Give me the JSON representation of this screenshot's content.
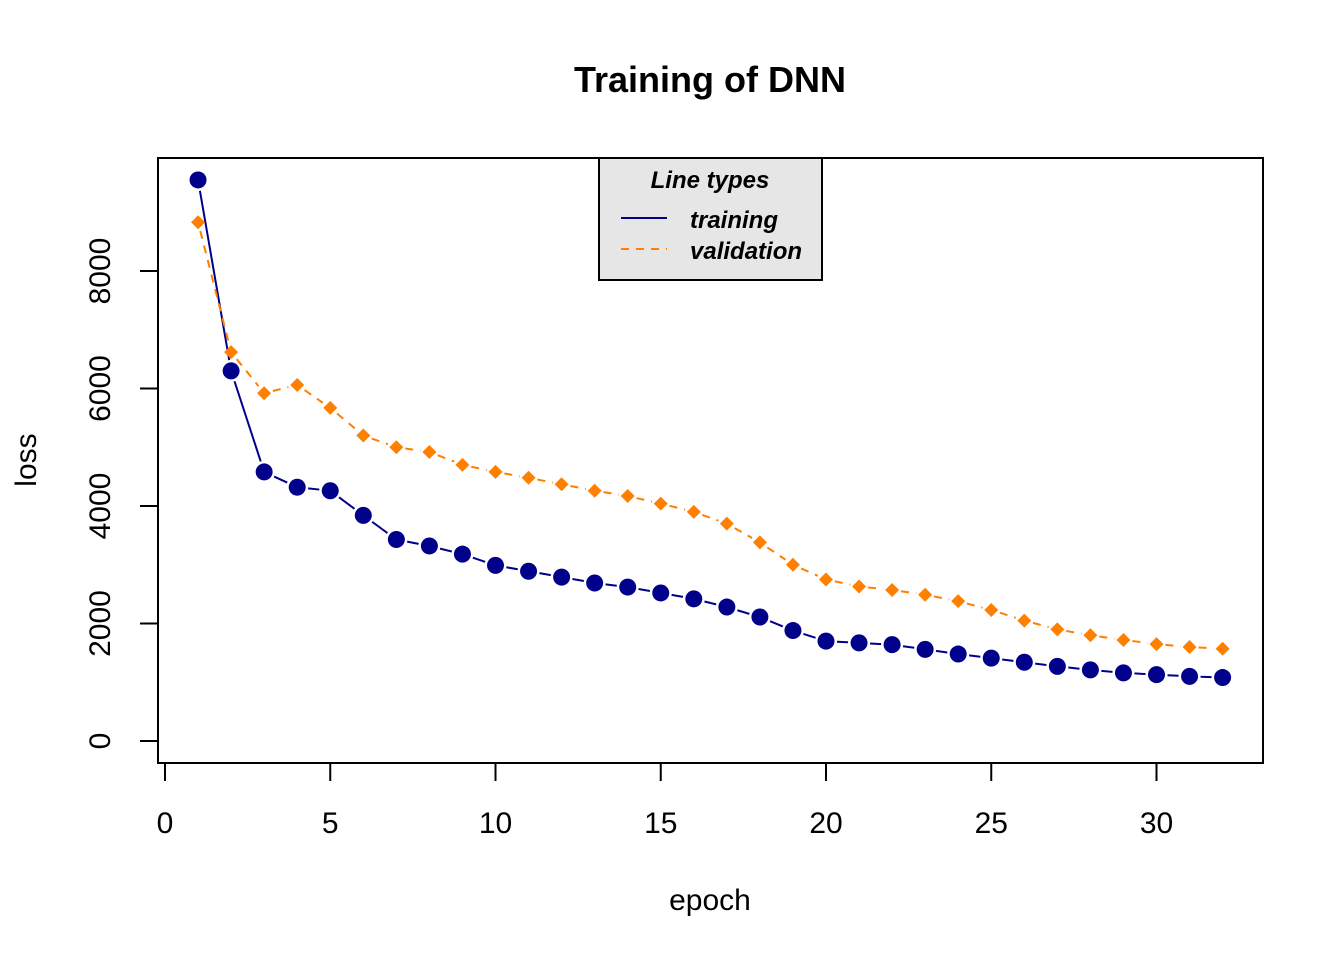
{
  "chart_data": {
    "type": "line",
    "title": "Training of DNN",
    "xlabel": "epoch",
    "ylabel": "loss",
    "xlim": [
      0,
      32
    ],
    "ylim": [
      0,
      9500
    ],
    "x_ticks": [
      "0",
      "5",
      "10",
      "15",
      "20",
      "25",
      "30"
    ],
    "y_ticks": [
      "0",
      "2000",
      "4000",
      "6000",
      "8000"
    ],
    "grid": false,
    "legend": {
      "title": "Line types",
      "position": "top-center",
      "entries": [
        {
          "label": "training",
          "line": "solid",
          "color": "#00008b"
        },
        {
          "label": "validation",
          "line": "dashed",
          "color": "#ff7f00"
        }
      ]
    },
    "x": [
      1,
      2,
      3,
      4,
      5,
      6,
      7,
      8,
      9,
      10,
      11,
      12,
      13,
      14,
      15,
      16,
      17,
      18,
      19,
      20,
      21,
      22,
      23,
      24,
      25,
      26,
      27,
      28,
      29,
      30,
      31,
      32
    ],
    "series": [
      {
        "name": "training",
        "color": "#00008b",
        "marker": "circle",
        "values": [
          9550,
          6300,
          4580,
          4320,
          4260,
          3840,
          3430,
          3320,
          3180,
          2990,
          2890,
          2790,
          2690,
          2620,
          2520,
          2420,
          2280,
          2110,
          1880,
          1700,
          1670,
          1640,
          1560,
          1480,
          1410,
          1340,
          1270,
          1210,
          1160,
          1130,
          1100,
          1080
        ]
      },
      {
        "name": "validation",
        "color": "#ff7f00",
        "marker": "diamond",
        "values": [
          8830,
          6620,
          5920,
          6060,
          5670,
          5200,
          5000,
          4920,
          4700,
          4580,
          4480,
          4370,
          4260,
          4170,
          4040,
          3900,
          3700,
          3380,
          3000,
          2750,
          2630,
          2570,
          2490,
          2380,
          2230,
          2050,
          1900,
          1800,
          1720,
          1650,
          1600,
          1570
        ]
      }
    ]
  }
}
